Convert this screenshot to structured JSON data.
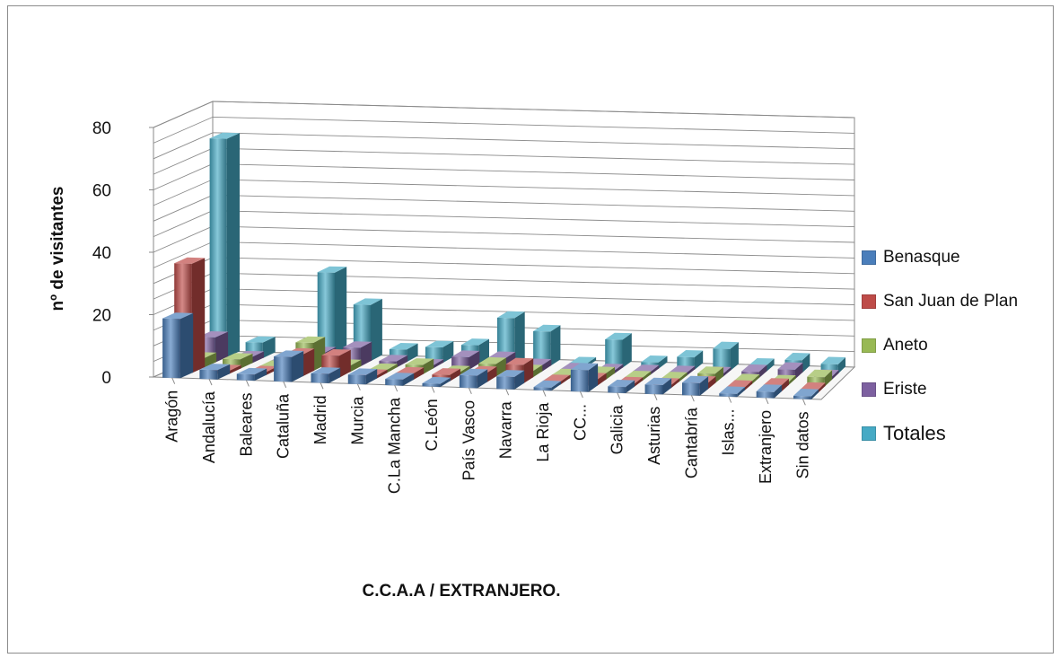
{
  "chart_data": {
    "type": "bar",
    "style": "3d-column",
    "title": "",
    "xlabel": "C.C.A.A / EXTRANJERO.",
    "ylabel": "nº de visitantes",
    "ylim": [
      0,
      80
    ],
    "yticks": [
      "0",
      "20",
      "40",
      "60",
      "80"
    ],
    "grid": true,
    "legend_position": "right",
    "categories": [
      "Aragón",
      "Andalucía",
      "Baleares",
      "Cataluña",
      "Madrid",
      "Murcia",
      "C.La Mancha",
      "C.León",
      "País Vasco",
      "Navarra",
      "La Rioja",
      "CC...",
      "Galicia",
      "Asturias",
      "Cantabría",
      "Islas...",
      "Extranjero",
      "Sin datos"
    ],
    "series": [
      {
        "name": "Benasque",
        "color": "#4a7ebb",
        "values": [
          19,
          3,
          2,
          8,
          3,
          3,
          2,
          1,
          4,
          4,
          1,
          7,
          2,
          3,
          4,
          1,
          2,
          1
        ]
      },
      {
        "name": "San Juan de Plan",
        "color": "#be4b48",
        "values": [
          35,
          1,
          1,
          7,
          7,
          1,
          2,
          2,
          3,
          6,
          1,
          2,
          1,
          1,
          2,
          1,
          2,
          1
        ]
      },
      {
        "name": "Aneto",
        "color": "#98b954",
        "values": [
          3,
          3,
          1,
          9,
          2,
          1,
          3,
          1,
          4,
          2,
          1,
          2,
          1,
          1,
          3,
          1,
          1,
          3
        ]
      },
      {
        "name": "Eriste",
        "color": "#7d60a0",
        "values": [
          8,
          2,
          1,
          4,
          6,
          2,
          1,
          4,
          4,
          2,
          1,
          1,
          1,
          1,
          1,
          2,
          3,
          1
        ]
      },
      {
        "name": "Totales",
        "color": "#46aac5",
        "values": [
          70,
          5,
          1,
          28,
          18,
          4,
          5,
          6,
          15,
          11,
          1,
          9,
          2,
          4,
          7,
          2,
          4,
          3
        ]
      }
    ]
  }
}
